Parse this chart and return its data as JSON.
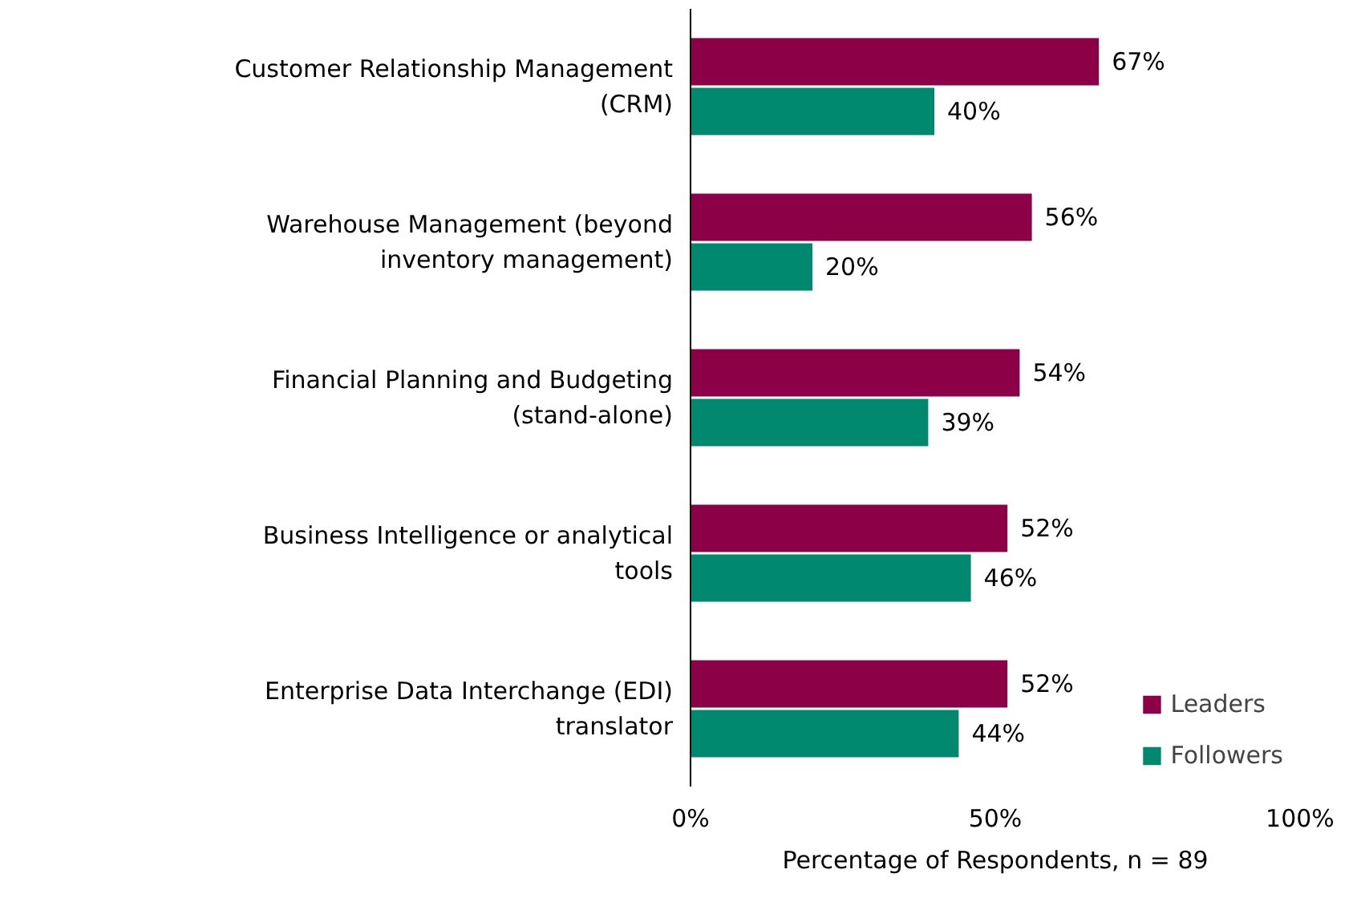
{
  "chart_data": {
    "type": "bar",
    "orientation": "horizontal",
    "xlabel": "Percentage of Respondents, n = 89",
    "categories": [
      "Customer Relationship Management (CRM)",
      "Warehouse Management (beyond inventory management)",
      "Financial Planning and Budgeting (stand-alone)",
      "Business Intelligence or analytical tools",
      "Enterprise Data Interchange (EDI) translator"
    ],
    "series": [
      {
        "name": "Leaders",
        "color": "#8b0046",
        "values": [
          67,
          56,
          54,
          52,
          52
        ],
        "value_labels": [
          "67%",
          "56%",
          "54%",
          "52%",
          "52%"
        ]
      },
      {
        "name": "Followers",
        "color": "#00896f",
        "values": [
          40,
          20,
          39,
          46,
          44
        ],
        "value_labels": [
          "40%",
          "20%",
          "39%",
          "46%",
          "44%"
        ]
      }
    ],
    "xlim": [
      0,
      100
    ],
    "xticks": [
      {
        "value": 0,
        "label": "0%"
      },
      {
        "value": 50,
        "label": "50%"
      },
      {
        "value": 100,
        "label": "100%"
      }
    ],
    "grid": false,
    "legend": "bottom right"
  }
}
